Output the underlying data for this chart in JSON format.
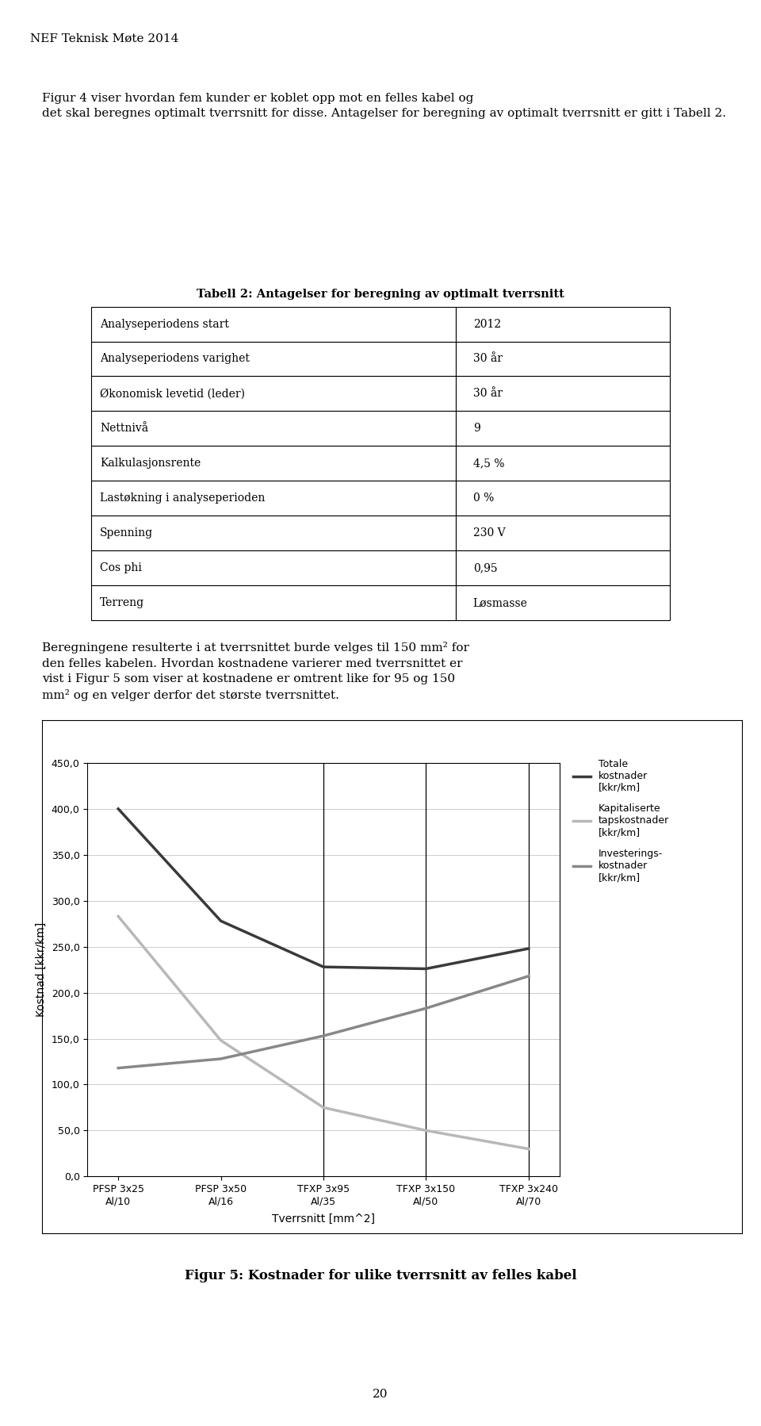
{
  "page_title": "NEF Teknisk Møte 2014",
  "page_number": "20",
  "intro_text": "Figur 4 viser hvordan fem kunder er koblet opp mot en felles kabel og\ndet skal beregnes optimalt tverrsnitt for disse. Antagelser for beregning av optimalt tverrsnitt er gitt i Tabell 2.",
  "table_title": "Tabell 2: Antagelser for beregning av optimalt tverrsnitt",
  "table_rows": [
    [
      "Analyseperiodens start",
      "2012"
    ],
    [
      "Analyseperiodens varighet",
      "30 år"
    ],
    [
      "Økonomisk levetid (leder)",
      "30 år"
    ],
    [
      "Nettnivå",
      "9"
    ],
    [
      "Kalkulasjonsrente",
      "4,5 %"
    ],
    [
      "Lastøkning i analyseperioden",
      "0 %"
    ],
    [
      "Spenning",
      "230 V"
    ],
    [
      "Cos phi",
      "0,95"
    ],
    [
      "Terreng",
      "Løsmasse"
    ]
  ],
  "body_text": "Beregningene resulterte i at tverrsnittet burde velges til 150 mm² for\nden felles kabelen. Hvordan kostnadene varierer med tverrsnittet er\nvist i Figur 5 som viser at kostnadene er omtrent like for 95 og 150\nmm² og en velger derfor det største tverrsnittet.",
  "chart_xlabel": "Tverrsnitt [mm^2]",
  "chart_ylabel": "Kostnad [kkr/km]",
  "chart_ylim": [
    0,
    450
  ],
  "chart_yticks": [
    0,
    50,
    100,
    150,
    200,
    250,
    300,
    350,
    400,
    450
  ],
  "chart_xtick_labels": [
    "PFSP 3x25\nAl/10",
    "PFSP 3x50\nAl/16",
    "TFXP 3x95\nAl/35",
    "TFXP 3x150\nAl/50",
    "TFXP 3x240\nAl/70"
  ],
  "series_totale_label": "Totale\nkostnader\n[kkr/km]",
  "series_totale_color": "#3a3a3a",
  "series_totale_linewidth": 2.5,
  "series_totale_values": [
    400,
    278,
    228,
    226,
    248
  ],
  "series_kap_label": "Kapitaliserte\ntapskostnader\n[kkr/km]",
  "series_kap_color": "#b8b8b8",
  "series_kap_linewidth": 2.5,
  "series_kap_values": [
    283,
    148,
    75,
    50,
    30
  ],
  "series_inv_label": "Investerings-\nkostnader\n[kkr/km]",
  "series_inv_color": "#888888",
  "series_inv_linewidth": 2.5,
  "series_inv_values": [
    118,
    128,
    153,
    183,
    218
  ],
  "fig_caption": "Figur 5: Kostnader for ulike tverrsnitt av felles kabel",
  "background_color": "#ffffff",
  "title_fontsize": 11,
  "body_fontsize": 11,
  "table_fontsize": 10,
  "caption_fontsize": 12
}
